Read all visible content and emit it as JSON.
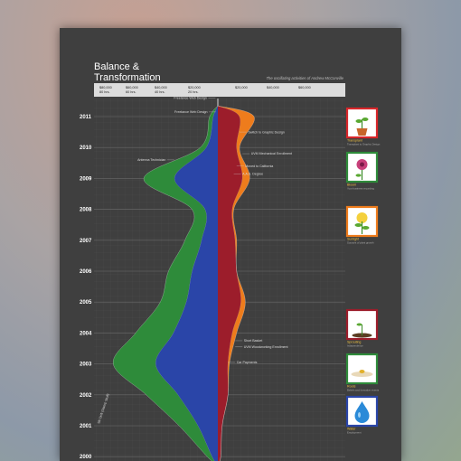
{
  "title_lines": [
    "Balance &",
    "Transformation"
  ],
  "subtitle": "The oscillating activities of Andrew McConville",
  "chart_data": {
    "type": "area",
    "layout": "mirrored stream graph",
    "years": [
      "2011",
      "2010",
      "2009",
      "2008",
      "2007",
      "2006",
      "2005",
      "2004",
      "2003",
      "2002",
      "2001",
      "2000"
    ],
    "x_ticks_left": [
      {
        "value": "$80,000",
        "sub": "80 hrs."
      },
      {
        "value": "$60,000",
        "sub": "60 hrs."
      },
      {
        "value": "$40,000",
        "sub": "40 hrs."
      },
      {
        "value": "$20,000",
        "sub": "20 hrs."
      }
    ],
    "x_ticks_right": [
      {
        "value": "$20,000"
      },
      {
        "value": "$40,000"
      },
      {
        "value": "$60,000"
      }
    ],
    "grid": true,
    "series": [
      {
        "side": "left",
        "color": "#2a45a8",
        "values": [
          4,
          10,
          37,
          11,
          14,
          22,
          27,
          38,
          53,
          34,
          17,
          5
        ]
      },
      {
        "side": "left",
        "color": "#2e8b3a",
        "values": [
          3,
          5,
          26,
          11,
          14,
          20,
          22,
          32,
          36,
          27,
          16,
          4
        ]
      },
      {
        "side": "right",
        "color": "#9c1d2b",
        "values": [
          15,
          13,
          17,
          10,
          12,
          13,
          16,
          10,
          7,
          7,
          3,
          2
        ]
      },
      {
        "side": "right",
        "color": "#ee7c1c",
        "values": [
          10,
          2,
          5,
          1,
          1,
          0,
          3,
          3,
          1,
          0,
          0,
          0
        ]
      }
    ],
    "annotations": [
      {
        "text": "Freelance Web Design",
        "year": 2011.6,
        "side": "left",
        "value": 2
      },
      {
        "text": "Freelance Web Design",
        "year": 2011.15,
        "side": "left",
        "value": 1.5
      },
      {
        "text": "Antenna Technician",
        "year": 2009.6,
        "side": "left",
        "value": 37
      },
      {
        "text": "Switch to Graphic Design",
        "year": 2010.5,
        "side": "right",
        "value": 15
      },
      {
        "text": "UVM Mechanical Enrollment",
        "year": 2009.8,
        "side": "right",
        "value": 17
      },
      {
        "text": "Moved to California",
        "year": 2009.4,
        "side": "right",
        "value": 13
      },
      {
        "text": "A.A.S. Degree",
        "year": 2009.15,
        "side": "right",
        "value": 11
      },
      {
        "text": "Short Basket",
        "year": 2003.75,
        "side": "right",
        "value": 12
      },
      {
        "text": "UVM Woodworking Enrollment",
        "year": 2003.55,
        "side": "right",
        "value": 12
      },
      {
        "text": "Car Payments",
        "year": 2003.05,
        "side": "right",
        "value": 7
      }
    ],
    "vertical_annotation": "Ski Drift (Stamp Stuff)"
  },
  "legend": [
    {
      "icon": "potted-sprout-icon",
      "name": "Transplant",
      "desc": "Transplant to Graphic Design",
      "border": "#d8262a"
    },
    {
      "icon": "flower-icon",
      "name": "Bloom",
      "desc": "Your business recording",
      "border": "#2e8b3a"
    },
    {
      "icon": "sun-sprout-icon",
      "name": "Sunlight",
      "desc": "Sources of plant growth",
      "border": "#ee7c1c"
    },
    {
      "icon": "sprout-icon",
      "name": "Sprouting",
      "desc": "Independence",
      "border": "#9c1d2b"
    },
    {
      "icon": "seed-icon",
      "name": "Roots",
      "desc": "Beliefs and formative events",
      "border": "#2e8b3a"
    },
    {
      "icon": "water-drop-icon",
      "name": "Water",
      "desc": "Employment",
      "border": "#2a45a8"
    }
  ]
}
